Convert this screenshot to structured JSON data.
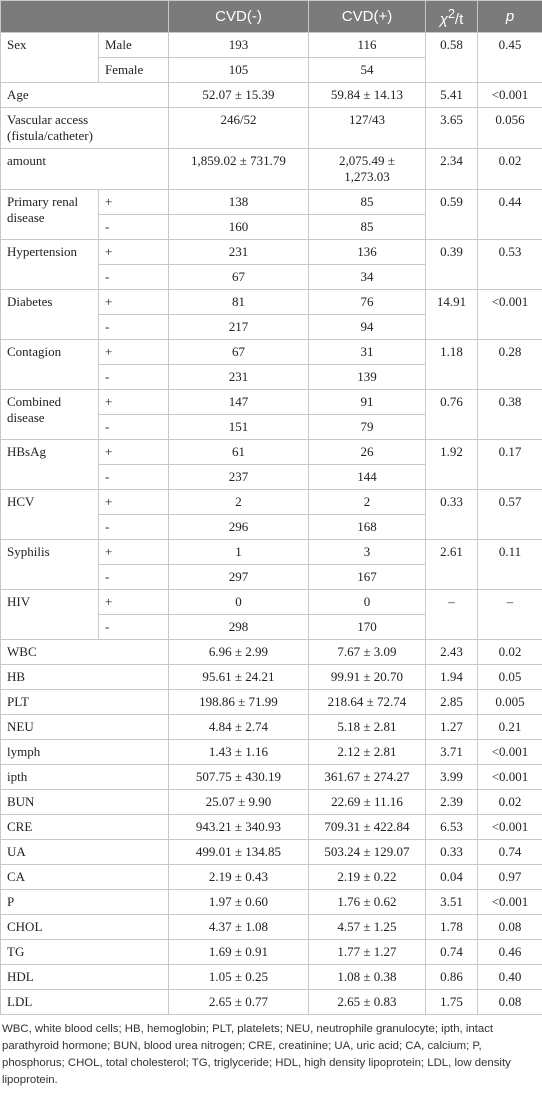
{
  "header": {
    "neg": "CVD(-)",
    "pos": "CVD(+)",
    "stat": {
      "base": "χ",
      "sup": "2",
      "tail": "/t"
    },
    "p": "p"
  },
  "rows": [
    {
      "label": "Sex",
      "levels": [
        {
          "level": "Male",
          "neg": "193",
          "pos": "116"
        },
        {
          "level": "Female",
          "neg": "105",
          "pos": "54"
        }
      ],
      "stat": "0.58",
      "p": "0.45"
    },
    {
      "label": "Age",
      "neg": "52.07 ± 15.39",
      "pos": "59.84 ± 14.13",
      "stat": "5.41",
      "p": "<0.001"
    },
    {
      "label": "Vascular access (fistula/catheter)",
      "neg": "246/52",
      "pos": "127/43",
      "stat": "3.65",
      "p": "0.056"
    },
    {
      "label": "amount",
      "neg": "1,859.02 ± 731.79",
      "pos": "2,075.49 ± 1,273.03",
      "stat": "2.34",
      "p": "0.02"
    },
    {
      "label": "Primary renal disease",
      "levels": [
        {
          "level": "+",
          "neg": "138",
          "pos": "85"
        },
        {
          "level": "-",
          "neg": "160",
          "pos": "85"
        }
      ],
      "stat": "0.59",
      "p": "0.44"
    },
    {
      "label": "Hypertension",
      "levels": [
        {
          "level": "+",
          "neg": "231",
          "pos": "136"
        },
        {
          "level": "-",
          "neg": "67",
          "pos": "34"
        }
      ],
      "stat": "0.39",
      "p": "0.53"
    },
    {
      "label": "Diabetes",
      "levels": [
        {
          "level": "+",
          "neg": "81",
          "pos": "76"
        },
        {
          "level": "-",
          "neg": "217",
          "pos": "94"
        }
      ],
      "stat": "14.91",
      "p": "<0.001"
    },
    {
      "label": "Contagion",
      "levels": [
        {
          "level": "+",
          "neg": "67",
          "pos": "31"
        },
        {
          "level": "-",
          "neg": "231",
          "pos": "139"
        }
      ],
      "stat": "1.18",
      "p": "0.28"
    },
    {
      "label": "Combined disease",
      "levels": [
        {
          "level": "+",
          "neg": "147",
          "pos": "91"
        },
        {
          "level": "-",
          "neg": "151",
          "pos": "79"
        }
      ],
      "stat": "0.76",
      "p": "0.38"
    },
    {
      "label": "HBsAg",
      "levels": [
        {
          "level": "+",
          "neg": "61",
          "pos": "26"
        },
        {
          "level": "-",
          "neg": "237",
          "pos": "144"
        }
      ],
      "stat": "1.92",
      "p": "0.17"
    },
    {
      "label": "HCV",
      "levels": [
        {
          "level": "+",
          "neg": "2",
          "pos": "2"
        },
        {
          "level": "-",
          "neg": "296",
          "pos": "168"
        }
      ],
      "stat": "0.33",
      "p": "0.57"
    },
    {
      "label": "Syphilis",
      "levels": [
        {
          "level": "+",
          "neg": "1",
          "pos": "3"
        },
        {
          "level": "-",
          "neg": "297",
          "pos": "167"
        }
      ],
      "stat": "2.61",
      "p": "0.11"
    },
    {
      "label": "HIV",
      "levels": [
        {
          "level": "+",
          "neg": "0",
          "pos": "0"
        },
        {
          "level": "-",
          "neg": "298",
          "pos": "170"
        }
      ],
      "stat": "–",
      "p": "–"
    },
    {
      "label": "WBC",
      "neg": "6.96 ± 2.99",
      "pos": "7.67 ± 3.09",
      "stat": "2.43",
      "p": "0.02"
    },
    {
      "label": "HB",
      "neg": "95.61 ± 24.21",
      "pos": "99.91 ± 20.70",
      "stat": "1.94",
      "p": "0.05"
    },
    {
      "label": "PLT",
      "neg": "198.86 ± 71.99",
      "pos": "218.64 ± 72.74",
      "stat": "2.85",
      "p": "0.005"
    },
    {
      "label": "NEU",
      "neg": "4.84 ± 2.74",
      "pos": "5.18 ± 2.81",
      "stat": "1.27",
      "p": "0.21"
    },
    {
      "label": "lymph",
      "neg": "1.43 ± 1.16",
      "pos": "2.12 ± 2.81",
      "stat": "3.71",
      "p": "<0.001"
    },
    {
      "label": "ipth",
      "neg": "507.75 ± 430.19",
      "pos": "361.67 ± 274.27",
      "stat": "3.99",
      "p": "<0.001"
    },
    {
      "label": "BUN",
      "neg": "25.07 ± 9.90",
      "pos": "22.69 ± 11.16",
      "stat": "2.39",
      "p": "0.02"
    },
    {
      "label": "CRE",
      "neg": "943.21 ± 340.93",
      "pos": "709.31 ± 422.84",
      "stat": "6.53",
      "p": "<0.001"
    },
    {
      "label": "UA",
      "neg": "499.01 ± 134.85",
      "pos": "503.24 ± 129.07",
      "stat": "0.33",
      "p": "0.74"
    },
    {
      "label": "CA",
      "neg": "2.19 ± 0.43",
      "pos": "2.19 ± 0.22",
      "stat": "0.04",
      "p": "0.97"
    },
    {
      "label": "P",
      "neg": "1.97 ± 0.60",
      "pos": "1.76 ± 0.62",
      "stat": "3.51",
      "p": "<0.001"
    },
    {
      "label": "CHOL",
      "neg": "4.37 ± 1.08",
      "pos": "4.57 ± 1.25",
      "stat": "1.78",
      "p": "0.08"
    },
    {
      "label": "TG",
      "neg": "1.69 ± 0.91",
      "pos": "1.77 ± 1.27",
      "stat": "0.74",
      "p": "0.46"
    },
    {
      "label": "HDL",
      "neg": "1.05 ± 0.25",
      "pos": "1.08 ± 0.38",
      "stat": "0.86",
      "p": "0.40"
    },
    {
      "label": "LDL",
      "neg": "2.65 ± 0.77",
      "pos": "2.65 ± 0.83",
      "stat": "1.75",
      "p": "0.08"
    }
  ],
  "footnote": "WBC, white blood cells; HB, hemoglobin; PLT, platelets; NEU, neutrophile granulocyte; ipth, intact parathyroid hormone; BUN, blood urea nitrogen; CRE, creatinine; UA, uric acid; CA, calcium; P, phosphorus; CHOL, total cholesterol; TG, triglyceride; HDL, high density lipoprotein; LDL, low density lipoprotein."
}
